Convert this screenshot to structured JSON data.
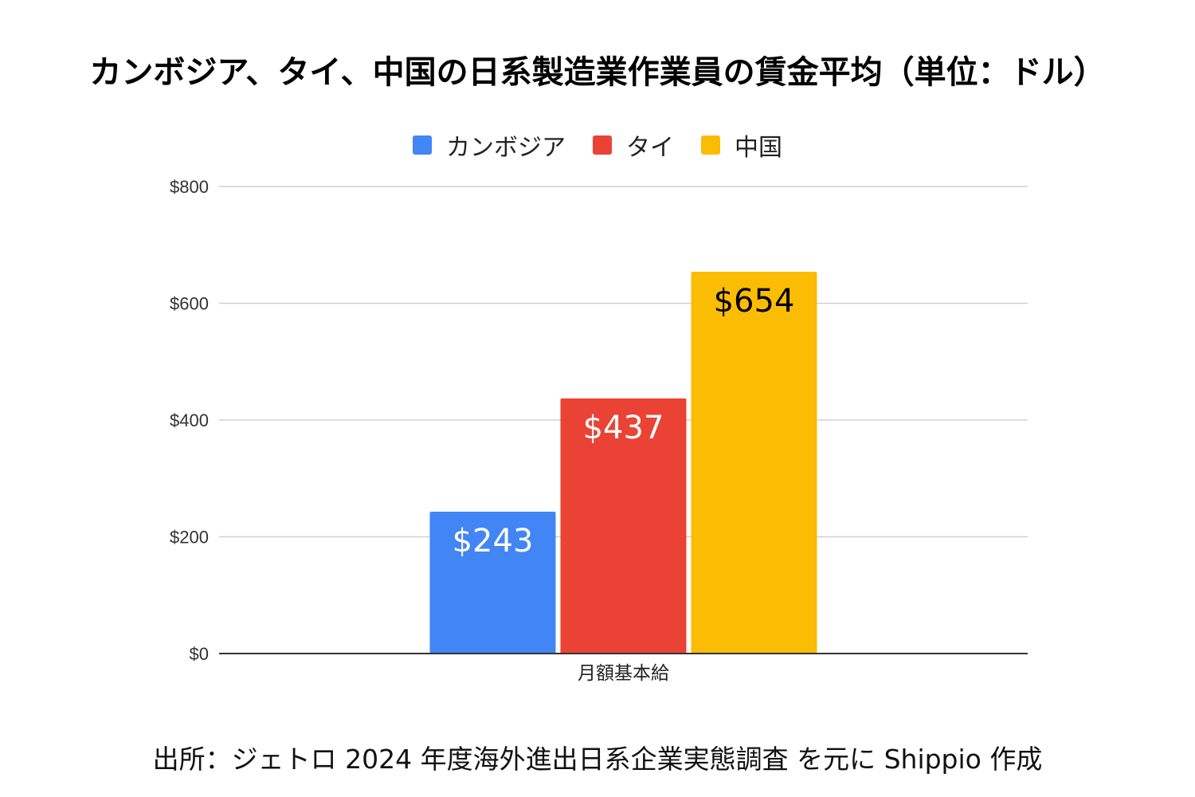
{
  "chart_data": {
    "type": "bar",
    "title": "カンボジア、タイ、中国の日系製造業作業員の賃金平均（単位：ドル）",
    "categories": [
      "月額基本給"
    ],
    "series": [
      {
        "name": "カンボジア",
        "values": [
          243
        ],
        "label": "$243",
        "color": "#4285f4",
        "label_color": "#ffffff"
      },
      {
        "name": "タイ",
        "values": [
          437
        ],
        "label": "$437",
        "color": "#ea4335",
        "label_color": "#ffffff"
      },
      {
        "name": "中国",
        "values": [
          654
        ],
        "label": "$654",
        "color": "#fbbc04",
        "label_color": "#000000"
      }
    ],
    "ylim": [
      0,
      800
    ],
    "yticks": [
      0,
      200,
      400,
      600,
      800
    ],
    "ytick_labels": [
      "$0",
      "$200",
      "$400",
      "$600",
      "$800"
    ],
    "xlabel": "",
    "ylabel": "",
    "grid": true,
    "legend_position": "top"
  },
  "source": "出所：ジェトロ 2024 年度海外進出日系企業実態調査 を元に Shippio 作成"
}
